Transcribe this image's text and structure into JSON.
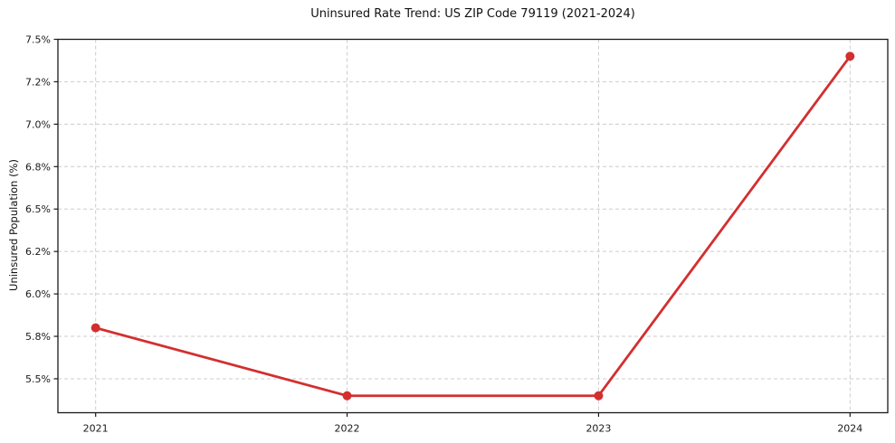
{
  "chart_data": {
    "type": "line",
    "title": "Uninsured Rate Trend: US ZIP Code 79119 (2021-2024)",
    "xlabel": "",
    "ylabel": "Uninsured Population (%)",
    "x": [
      2021,
      2022,
      2023,
      2024
    ],
    "x_tick_labels": [
      "2021",
      "2022",
      "2023",
      "2024"
    ],
    "values": [
      5.8,
      5.4,
      5.4,
      7.4
    ],
    "series_name": "Uninsured Population (%)",
    "xlim": [
      2020.85,
      2024.15
    ],
    "ylim": [
      5.3,
      7.5
    ],
    "yticks": [
      5.5,
      5.75,
      6.0,
      6.25,
      6.5,
      6.75,
      7.0,
      7.25,
      7.5
    ],
    "ytick_labels": [
      "5.5%",
      "5.8%",
      "6.0%",
      "6.2%",
      "6.5%",
      "6.8%",
      "7.0%",
      "7.2%",
      "7.5%"
    ],
    "grid": true,
    "grid_style": "dashed",
    "legend": false,
    "marker": "circle",
    "colors": {
      "line": "#d32f2f",
      "marker": "#d32f2f",
      "grid": "#cccccc",
      "spine": "#1a1a1a",
      "text": "#1a1a1a",
      "background": "#ffffff"
    }
  }
}
